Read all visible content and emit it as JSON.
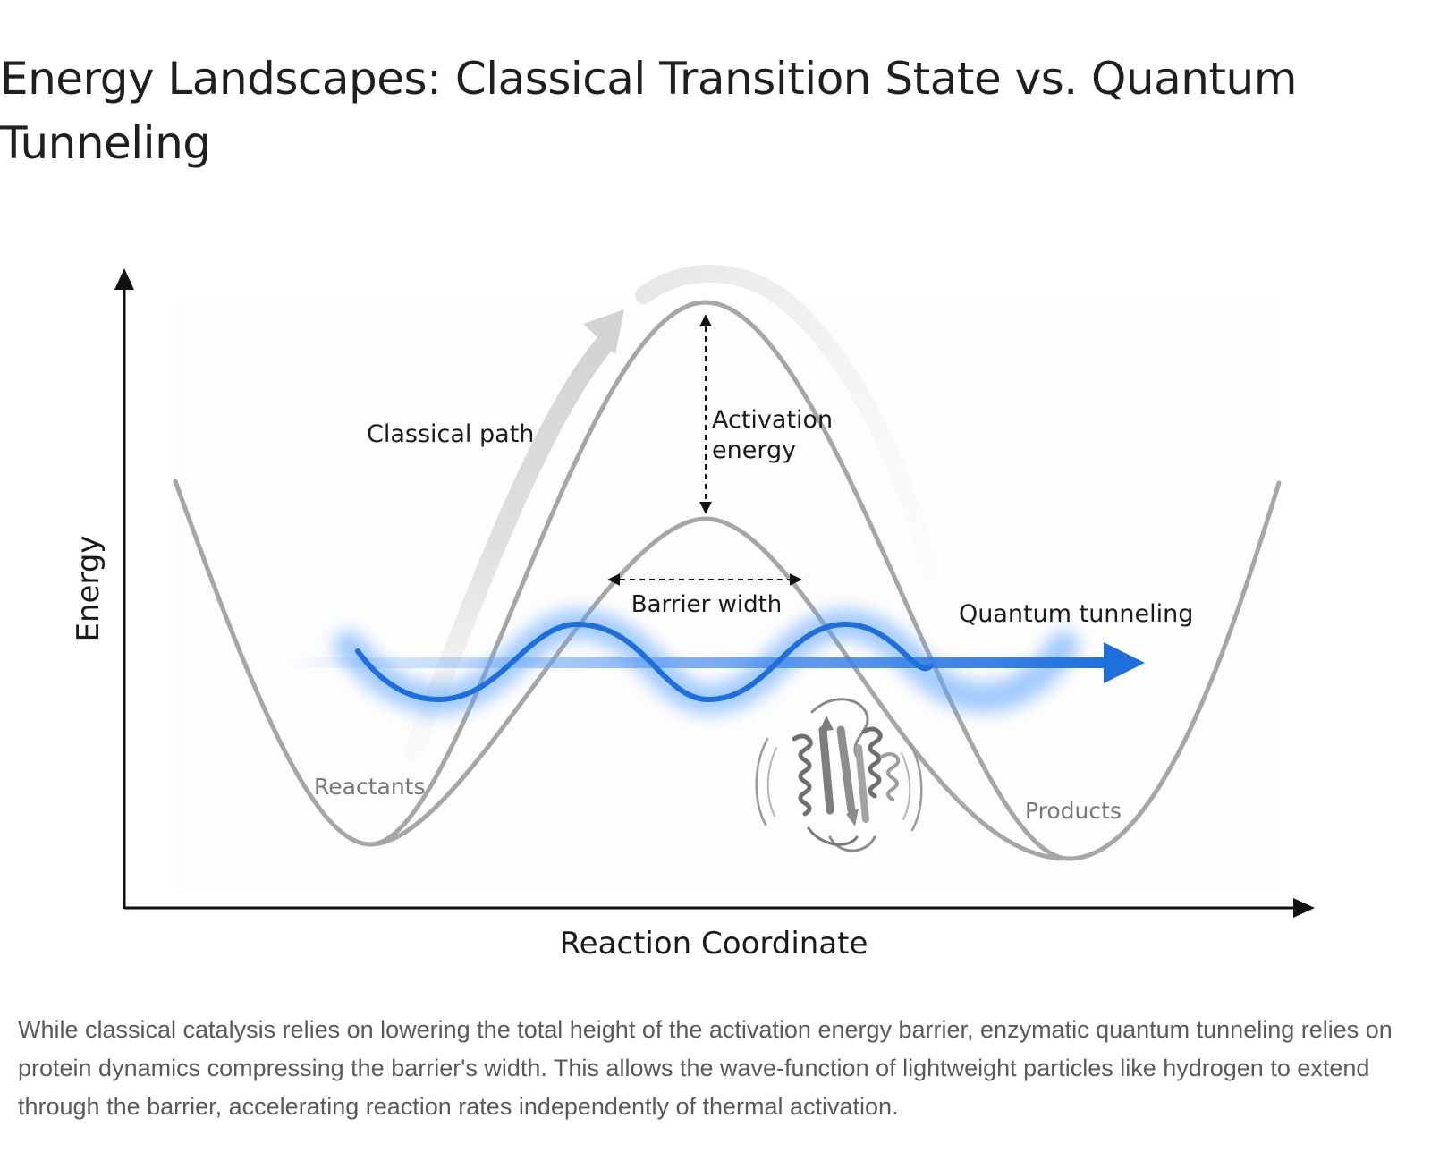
{
  "title": "Energy Landscapes: Classical Transition State vs. Quantum Tunneling",
  "diagram": {
    "y_axis_label": "Energy",
    "x_axis_label": "Reaction Coordinate",
    "labels": {
      "classical_path": "Classical path",
      "activation_energy_line1": "Activation",
      "activation_energy_line2": "energy",
      "barrier_width": "Barrier width",
      "quantum_tunneling": "Quantum tunneling",
      "reactants": "Reactants",
      "products": "Products"
    },
    "icons": {
      "protein": "protein-ribbon-icon"
    },
    "colors": {
      "curve": "#a6a6a6",
      "classical_arrow": "#d4d4d4",
      "tunneling": "#1e6fdc",
      "tunneling_glow": "#5aa2ff",
      "axis": "#111111"
    }
  },
  "caption": "While classical catalysis relies on lowering the total height of the activation energy barrier, enzymatic quantum tunneling relies on protein dynamics compressing the barrier's width. This allows the wave-function of lightweight particles like hydrogen to extend through the barrier, accelerating reaction rates independently of thermal activation."
}
